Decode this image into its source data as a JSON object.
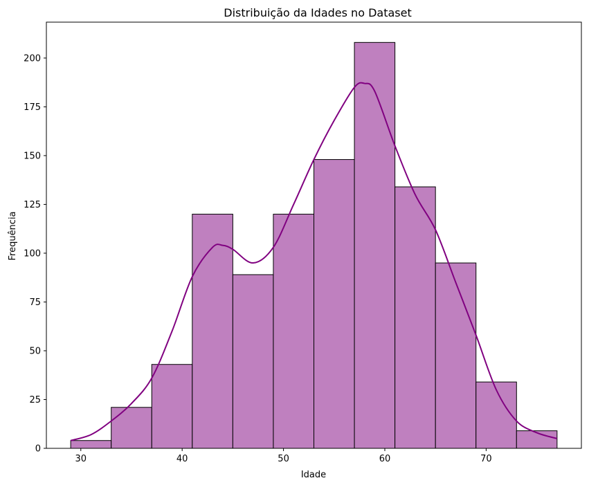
{
  "chart_data": {
    "type": "bar",
    "title": "Distribuição da Idades no Dataset",
    "xlabel": "Idade",
    "ylabel": "Frequência",
    "bin_edges": [
      29,
      33,
      37,
      41,
      45,
      49,
      53,
      57,
      61,
      65,
      69,
      73,
      77
    ],
    "values": [
      4,
      21,
      43,
      120,
      89,
      120,
      148,
      208,
      134,
      95,
      34,
      9
    ],
    "xlim": [
      26.6,
      79.4
    ],
    "ylim": [
      0,
      218.4
    ],
    "xticks": [
      30,
      40,
      50,
      60,
      70
    ],
    "yticks": [
      0,
      25,
      50,
      75,
      100,
      125,
      150,
      175,
      200
    ],
    "kde": {
      "x": [
        29,
        31,
        33,
        35,
        37,
        39,
        41,
        43,
        44,
        45,
        47,
        49,
        51,
        53,
        55,
        57,
        58,
        59,
        61,
        63,
        65,
        67,
        69,
        71,
        73,
        75,
        77
      ],
      "y": [
        4,
        7,
        14,
        23,
        36,
        60,
        88,
        103,
        104,
        102,
        95,
        103,
        125,
        148,
        168,
        185,
        187,
        183,
        155,
        130,
        112,
        85,
        58,
        30,
        14,
        8,
        5
      ]
    },
    "bar_fill": "#bf80bf",
    "bar_edge": "#000000",
    "kde_color": "#800080",
    "grid": false,
    "legend": false
  }
}
